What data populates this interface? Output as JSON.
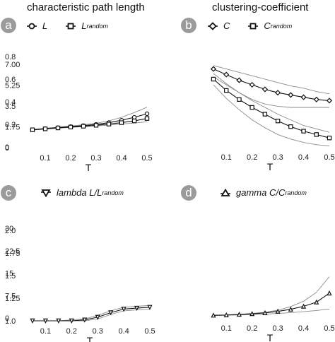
{
  "titles": {
    "left": "characteristic path length",
    "right": "clustering-coefficient"
  },
  "panels": [
    {
      "letter": "a",
      "legend": [
        {
          "marker": "circle",
          "text": "L",
          "sup": ""
        },
        {
          "marker": "square",
          "text": "L",
          "sup": "random"
        }
      ]
    },
    {
      "letter": "b",
      "legend": [
        {
          "marker": "diamond",
          "text": "C",
          "sup": ""
        },
        {
          "marker": "square",
          "text": "C",
          "sup": "random"
        }
      ]
    },
    {
      "letter": "c",
      "legend": [
        {
          "marker": "triangle-down",
          "text": "lambda  L/L",
          "sup": "random"
        }
      ]
    },
    {
      "letter": "d",
      "legend": [
        {
          "marker": "triangle-up",
          "text": "gamma  C/C",
          "sup": "random"
        }
      ]
    }
  ],
  "chart_data": [
    {
      "type": "line",
      "xlabel": "T",
      "ylabel": "",
      "xlim": [
        0.05,
        0.5
      ],
      "ylim": [
        0,
        7
      ],
      "xticks": [
        "0.1",
        "0.2",
        "0.3",
        "0.4",
        "0.5"
      ],
      "xtick_values": [
        0.1,
        0.2,
        0.3,
        0.4,
        0.5
      ],
      "yticks": [
        "0",
        "1.75",
        "3.5",
        "5.25",
        "7.00"
      ],
      "ytick_values": [
        0,
        1.75,
        3.5,
        5.25,
        7.0
      ],
      "x": [
        0.05,
        0.1,
        0.15,
        0.2,
        0.25,
        0.3,
        0.35,
        0.4,
        0.45,
        0.5
      ],
      "series": [
        {
          "name": "L",
          "marker": "circle",
          "values": [
            1.5,
            1.6,
            1.68,
            1.77,
            1.85,
            1.95,
            2.1,
            2.3,
            2.55,
            2.85
          ]
        },
        {
          "name": "L random",
          "marker": "square",
          "values": [
            1.5,
            1.58,
            1.66,
            1.73,
            1.8,
            1.88,
            1.98,
            2.1,
            2.25,
            2.45
          ]
        },
        {
          "name": "",
          "marker": "none",
          "color": "#8a8a8a",
          "values": [
            1.52,
            1.63,
            1.72,
            1.82,
            1.92,
            2.05,
            2.25,
            2.55,
            2.95,
            3.4
          ]
        },
        {
          "name": "",
          "marker": "none",
          "color": "#8a8a8a",
          "values": [
            1.48,
            1.57,
            1.64,
            1.7,
            1.77,
            1.83,
            1.9,
            1.98,
            2.07,
            2.17
          ]
        }
      ]
    },
    {
      "type": "line",
      "xlabel": "T",
      "ylabel": "",
      "xlim": [
        0.05,
        0.5
      ],
      "ylim": [
        0,
        0.8
      ],
      "xticks": [
        "0.1",
        "0.2",
        "0.3",
        "0.4",
        "0.5"
      ],
      "xtick_values": [
        0.1,
        0.2,
        0.3,
        0.4,
        0.5
      ],
      "yticks": [
        "0",
        "0.2",
        "0.4",
        "0.6",
        "0.8"
      ],
      "ytick_values": [
        0,
        0.2,
        0.4,
        0.6,
        0.8
      ],
      "x": [
        0.05,
        0.1,
        0.15,
        0.2,
        0.25,
        0.3,
        0.35,
        0.4,
        0.45,
        0.5
      ],
      "series": [
        {
          "name": "C",
          "marker": "diamond",
          "values": [
            0.69,
            0.64,
            0.59,
            0.55,
            0.51,
            0.48,
            0.46,
            0.44,
            0.42,
            0.41
          ]
        },
        {
          "name": "C random",
          "marker": "square",
          "values": [
            0.6,
            0.5,
            0.42,
            0.35,
            0.29,
            0.23,
            0.18,
            0.14,
            0.11,
            0.08
          ]
        },
        {
          "name": "",
          "marker": "none",
          "color": "#8a8a8a",
          "values": [
            0.72,
            0.69,
            0.66,
            0.63,
            0.6,
            0.57,
            0.54,
            0.52,
            0.49,
            0.47
          ]
        },
        {
          "name": "",
          "marker": "none",
          "color": "#8a8a8a",
          "values": [
            0.65,
            0.56,
            0.48,
            0.42,
            0.38,
            0.36,
            0.35,
            0.35,
            0.35,
            0.35
          ]
        },
        {
          "name": "",
          "marker": "none",
          "color": "#8a8a8a",
          "values": [
            0.62,
            0.55,
            0.48,
            0.41,
            0.35,
            0.29,
            0.24,
            0.19,
            0.16,
            0.13
          ]
        },
        {
          "name": "",
          "marker": "none",
          "color": "#8a8a8a",
          "values": [
            0.55,
            0.43,
            0.33,
            0.24,
            0.17,
            0.11,
            0.07,
            0.04,
            0.02,
            0.01
          ]
        }
      ]
    },
    {
      "type": "line",
      "xlabel": "T",
      "ylabel": "",
      "xlim": [
        0.05,
        0.5
      ],
      "ylim": [
        1.0,
        2.0
      ],
      "xticks": [
        "0.1",
        "0.2",
        "0.3",
        "0.4",
        "0.5"
      ],
      "xtick_values": [
        0.1,
        0.2,
        0.3,
        0.4,
        0.5
      ],
      "yticks": [
        "1.0",
        "1.25",
        "1.5",
        "1.75",
        "2.0"
      ],
      "ytick_values": [
        1.0,
        1.25,
        1.5,
        1.75,
        2.0
      ],
      "x": [
        0.05,
        0.1,
        0.15,
        0.2,
        0.25,
        0.3,
        0.35,
        0.4,
        0.45,
        0.5
      ],
      "series": [
        {
          "name": "lambda",
          "marker": "triangle-down",
          "values": [
            1.0,
            1.0,
            1.0,
            1.0,
            1.01,
            1.04,
            1.09,
            1.13,
            1.14,
            1.15
          ]
        },
        {
          "name": "",
          "marker": "none",
          "color": "#8a8a8a",
          "values": [
            1.0,
            1.0,
            1.0,
            1.01,
            1.02,
            1.06,
            1.11,
            1.15,
            1.16,
            1.17
          ]
        },
        {
          "name": "",
          "marker": "none",
          "color": "#8a8a8a",
          "values": [
            1.0,
            1.0,
            1.0,
            1.0,
            1.0,
            1.02,
            1.07,
            1.11,
            1.12,
            1.13
          ]
        }
      ]
    },
    {
      "type": "line",
      "xlabel": "T",
      "ylabel": "",
      "xlim": [
        0.05,
        0.5
      ],
      "ylim": [
        0,
        30
      ],
      "xticks": [
        "0.1",
        "0.2",
        "0.3",
        "0.4",
        "0.5"
      ],
      "xtick_values": [
        0.1,
        0.2,
        0.3,
        0.4,
        0.5
      ],
      "yticks": [
        "0",
        "7.5",
        "15",
        "22.5",
        "30"
      ],
      "ytick_values": [
        0,
        7.5,
        15,
        22.5,
        30
      ],
      "x": [
        0.05,
        0.1,
        0.15,
        0.2,
        0.25,
        0.3,
        0.35,
        0.4,
        0.45,
        0.5
      ],
      "series": [
        {
          "name": "gamma",
          "marker": "triangle-up",
          "values": [
            0.9,
            1.0,
            1.2,
            1.4,
            1.7,
            2.2,
            2.9,
            3.9,
            5.3,
            8.3
          ]
        },
        {
          "name": "",
          "marker": "none",
          "color": "#8a8a8a",
          "values": [
            0.9,
            1.0,
            1.2,
            1.5,
            1.9,
            2.6,
            3.8,
            5.6,
            8.6,
            13.8
          ]
        },
        {
          "name": "",
          "marker": "none",
          "color": "#8a8a8a",
          "values": [
            0.8,
            0.9,
            1.0,
            1.1,
            1.3,
            1.5,
            1.8,
            2.1,
            2.5,
            3.0
          ]
        }
      ]
    }
  ]
}
